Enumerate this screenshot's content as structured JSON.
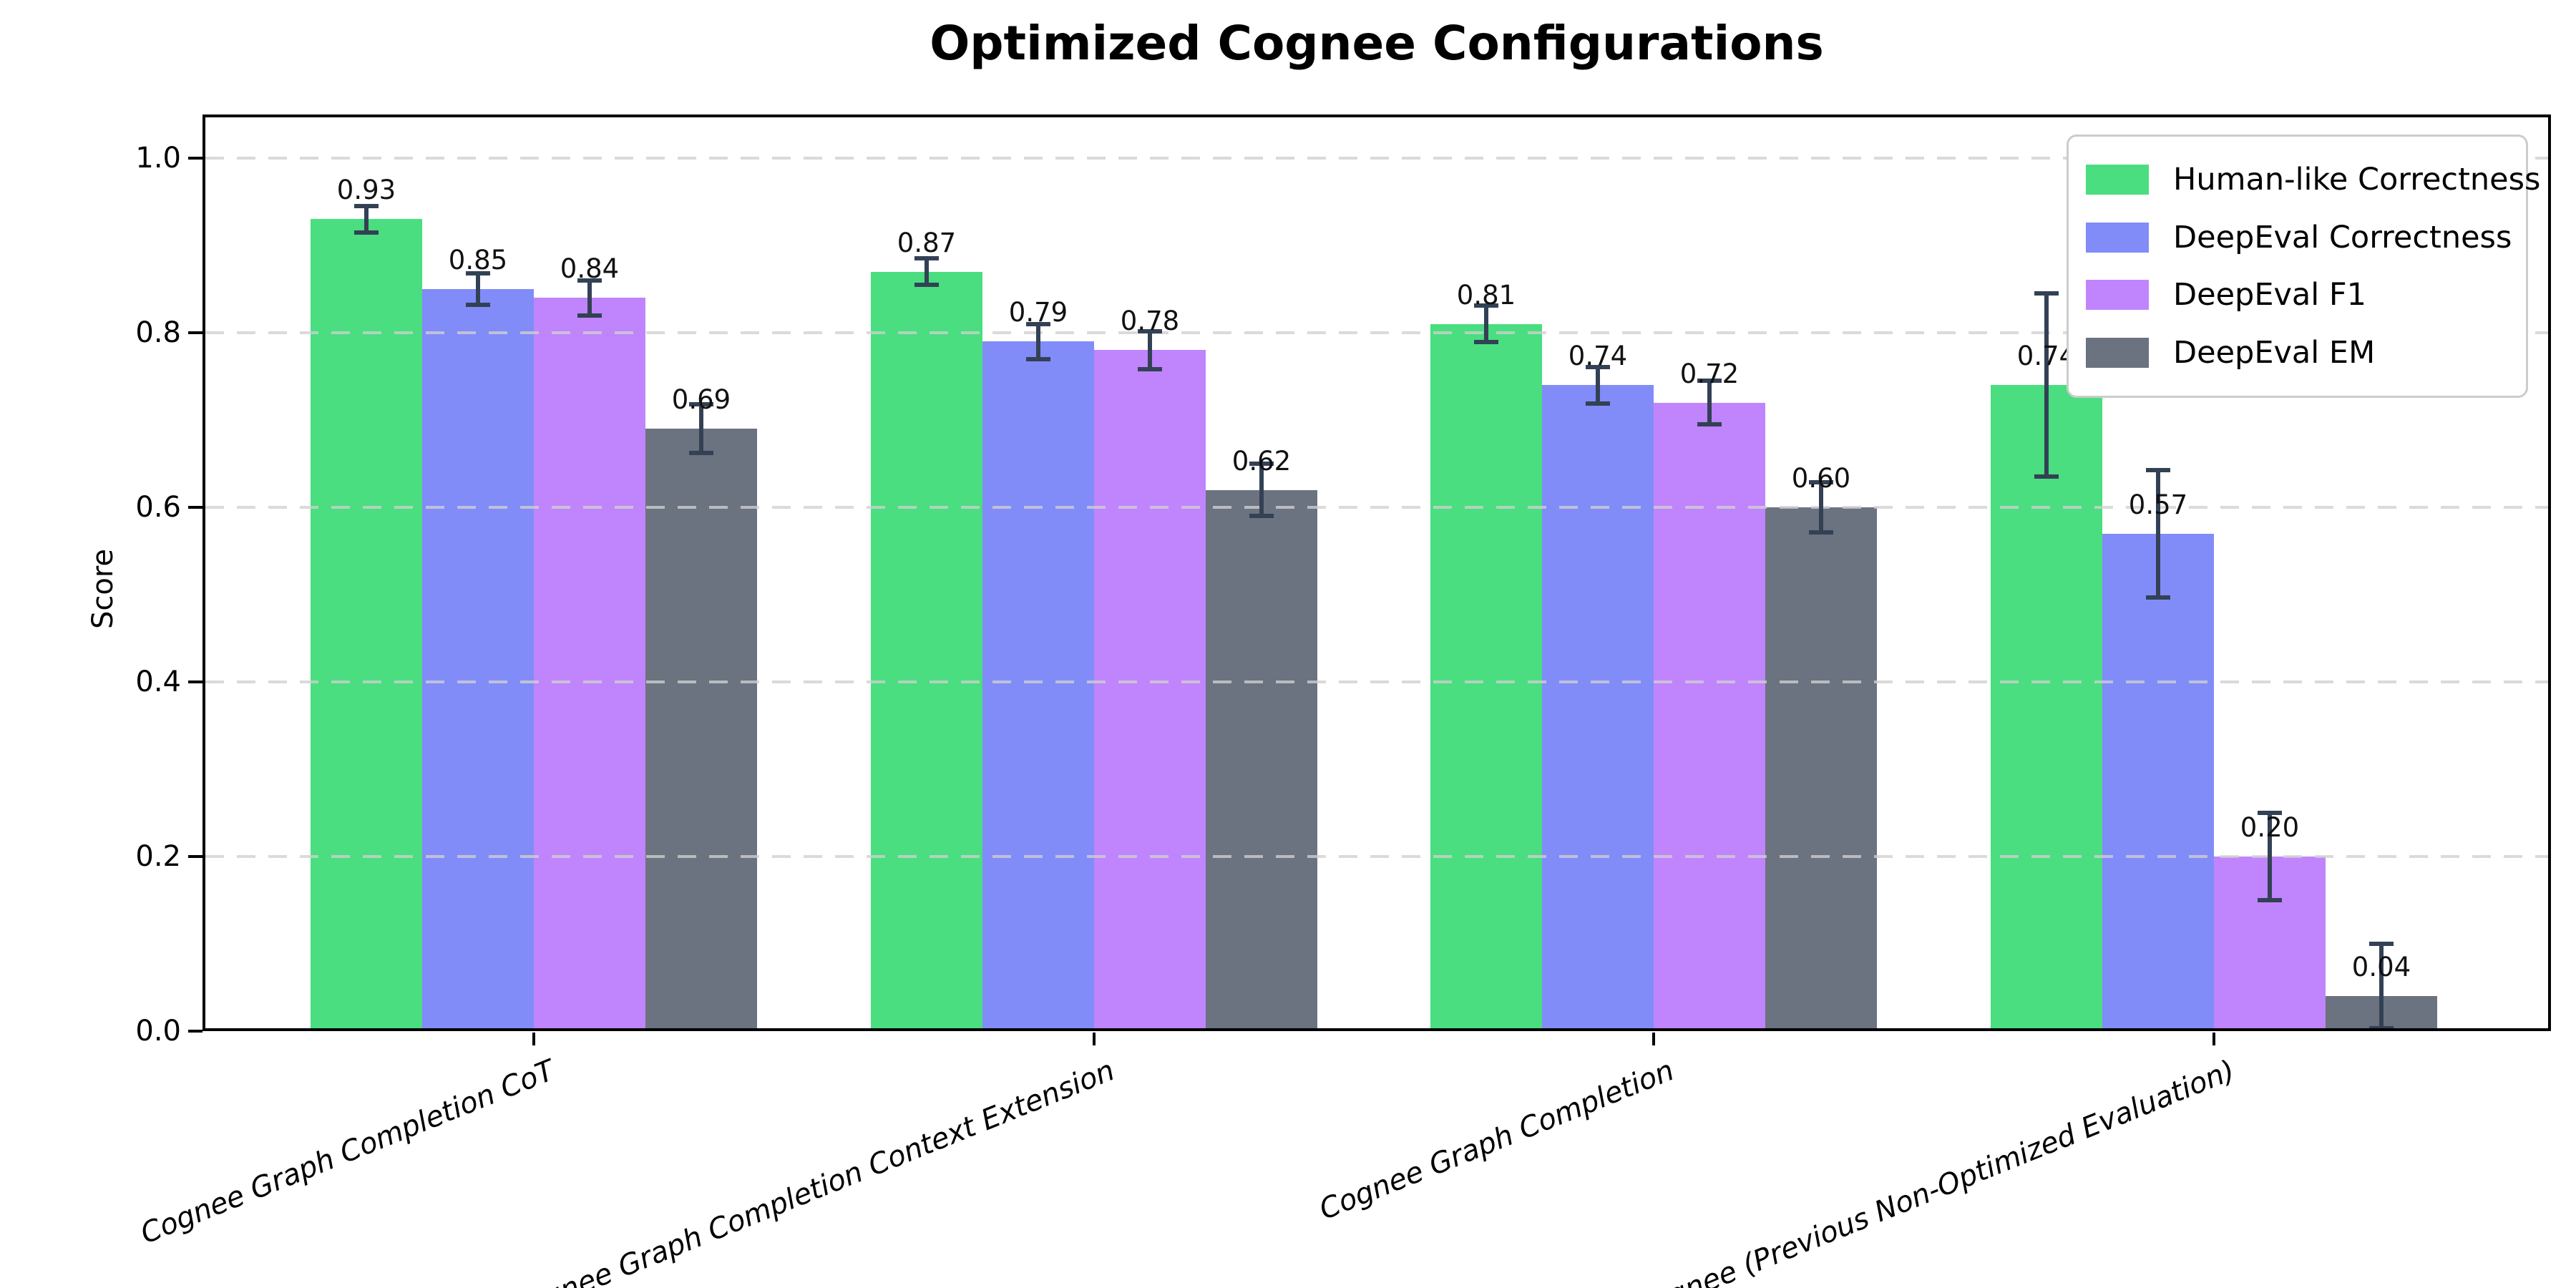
{
  "title": "Optimized Cognee Configurations",
  "chart_data": {
    "type": "bar",
    "title": "Optimized Cognee Configurations",
    "xlabel": "",
    "ylabel": "Score",
    "categories": [
      "Cognee Graph Completion CoT",
      "Cognee Graph Completion Context Extension",
      "Cognee Graph Completion",
      "Cognee (Previous Non-Optimized Evaluation)"
    ],
    "series": [
      {
        "name": "Human-like Correctness",
        "color": "#4ade80",
        "values": [
          0.93,
          0.87,
          0.81,
          0.74
        ],
        "errors": [
          0.015,
          0.015,
          0.021,
          0.105
        ]
      },
      {
        "name": "DeepEval Correctness",
        "color": "#818cf8",
        "values": [
          0.85,
          0.79,
          0.74,
          0.57
        ],
        "errors": [
          0.018,
          0.02,
          0.021,
          0.073
        ]
      },
      {
        "name": "DeepEval F1",
        "color": "#c084fc",
        "values": [
          0.84,
          0.78,
          0.72,
          0.2
        ],
        "errors": [
          0.02,
          0.022,
          0.025,
          0.05
        ]
      },
      {
        "name": "DeepEval EM",
        "color": "#6b7280",
        "values": [
          0.69,
          0.62,
          0.6,
          0.04
        ],
        "errors": [
          0.028,
          0.03,
          0.029,
          0.06
        ]
      }
    ],
    "bar_value_labels": [
      "0.93",
      "0.85",
      "0.84",
      "0.69",
      "0.87",
      "0.79",
      "0.78",
      "0.62",
      "0.81",
      "0.74",
      "0.72",
      "0.60",
      "0.74",
      "0.57",
      "0.20",
      "0.04"
    ],
    "yticks": [
      "0.0",
      "0.2",
      "0.4",
      "0.6",
      "0.8",
      "1.0"
    ],
    "ylim": [
      0,
      1.05
    ],
    "grid": {
      "axis": "y",
      "style": "dashed",
      "color": "#d0d0d0"
    },
    "legend_position": "upper right",
    "error_bar_color": "#334155"
  }
}
